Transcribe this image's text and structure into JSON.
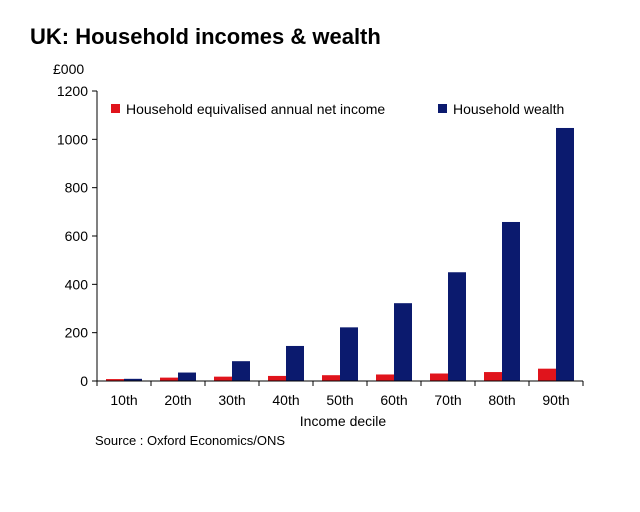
{
  "chart_data": {
    "type": "bar",
    "title": "UK: Household incomes & wealth",
    "unit_label": "£000",
    "xlabel": "Income decile",
    "ylabel": "",
    "ylim": [
      0,
      1200
    ],
    "yticks": [
      "0",
      "200",
      "400",
      "600",
      "800",
      "1000",
      "1200"
    ],
    "categories": [
      "10th",
      "20th",
      "30th",
      "40th",
      "50th",
      "60th",
      "70th",
      "80th",
      "90th"
    ],
    "series": [
      {
        "name": "Household equivalised annual net income",
        "color": "#e0141c",
        "values": [
          8,
          14,
          18,
          21,
          24,
          27,
          31,
          37,
          51
        ]
      },
      {
        "name": "Household wealth",
        "color": "#0b1a6e",
        "values": [
          9,
          35,
          82,
          145,
          222,
          322,
          450,
          658,
          1047
        ]
      }
    ],
    "legend_position": "top",
    "grid": false,
    "source": "Source : Oxford Economics/ONS"
  }
}
